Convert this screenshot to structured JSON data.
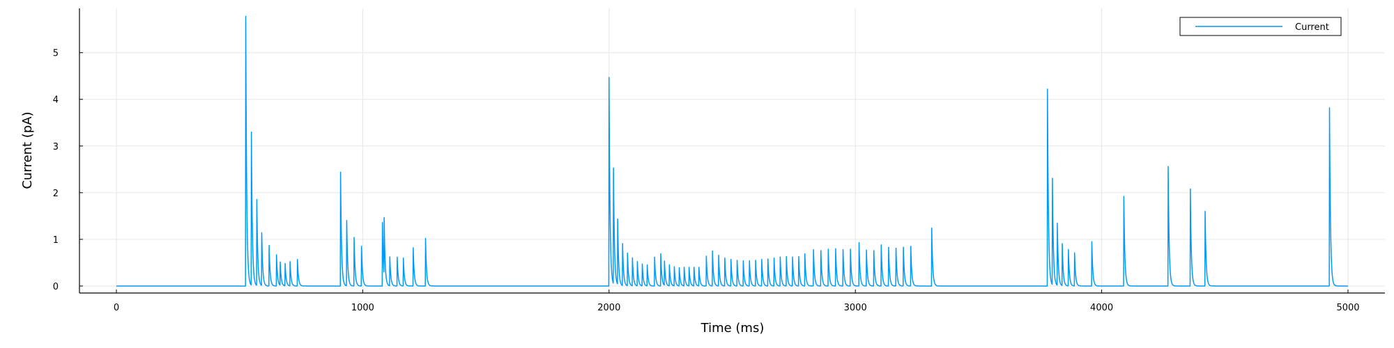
{
  "chart_data": {
    "type": "line",
    "title": "",
    "xlabel": "Time (ms)",
    "ylabel": "Current (pA)",
    "xlim": [
      -150,
      5150
    ],
    "ylim": [
      -0.15,
      5.95
    ],
    "xticks": [
      0,
      1000,
      2000,
      3000,
      4000,
      5000
    ],
    "yticks": [
      0,
      1,
      2,
      3,
      4,
      5
    ],
    "grid": true,
    "legend_position": "top-right",
    "series": [
      {
        "name": "Current",
        "color": "#009AFA",
        "range": [
          0,
          5000
        ],
        "baseline": 0,
        "spikes": [
          [
            525,
            5.78
          ],
          [
            548,
            3.28
          ],
          [
            570,
            1.84
          ],
          [
            590,
            1.13
          ],
          [
            620,
            0.87
          ],
          [
            650,
            0.67
          ],
          [
            665,
            0.5
          ],
          [
            685,
            0.48
          ],
          [
            705,
            0.52
          ],
          [
            735,
            0.57
          ],
          [
            910,
            2.44
          ],
          [
            935,
            1.4
          ],
          [
            965,
            1.04
          ],
          [
            995,
            0.85
          ],
          [
            1080,
            1.36
          ],
          [
            1087,
            1.23
          ],
          [
            1110,
            0.62
          ],
          [
            1140,
            0.62
          ],
          [
            1165,
            0.6
          ],
          [
            1205,
            0.82
          ],
          [
            1255,
            1.02
          ],
          [
            2000,
            4.47
          ],
          [
            2018,
            2.48
          ],
          [
            2035,
            1.4
          ],
          [
            2055,
            0.9
          ],
          [
            2075,
            0.7
          ],
          [
            2095,
            0.6
          ],
          [
            2115,
            0.52
          ],
          [
            2135,
            0.47
          ],
          [
            2155,
            0.45
          ],
          [
            2185,
            0.62
          ],
          [
            2210,
            0.69
          ],
          [
            2225,
            0.52
          ],
          [
            2245,
            0.45
          ],
          [
            2265,
            0.41
          ],
          [
            2285,
            0.39
          ],
          [
            2305,
            0.4
          ],
          [
            2325,
            0.4
          ],
          [
            2345,
            0.4
          ],
          [
            2365,
            0.4
          ],
          [
            2395,
            0.64
          ],
          [
            2420,
            0.75
          ],
          [
            2445,
            0.66
          ],
          [
            2470,
            0.6
          ],
          [
            2495,
            0.57
          ],
          [
            2520,
            0.55
          ],
          [
            2545,
            0.54
          ],
          [
            2570,
            0.54
          ],
          [
            2595,
            0.55
          ],
          [
            2620,
            0.57
          ],
          [
            2645,
            0.58
          ],
          [
            2670,
            0.6
          ],
          [
            2695,
            0.62
          ],
          [
            2720,
            0.63
          ],
          [
            2745,
            0.62
          ],
          [
            2770,
            0.63
          ],
          [
            2795,
            0.69
          ],
          [
            2830,
            0.78
          ],
          [
            2860,
            0.76
          ],
          [
            2890,
            0.79
          ],
          [
            2920,
            0.8
          ],
          [
            2950,
            0.78
          ],
          [
            2980,
            0.79
          ],
          [
            3015,
            0.93
          ],
          [
            3045,
            0.77
          ],
          [
            3075,
            0.76
          ],
          [
            3105,
            0.88
          ],
          [
            3135,
            0.83
          ],
          [
            3165,
            0.81
          ],
          [
            3195,
            0.83
          ],
          [
            3225,
            0.85
          ],
          [
            3310,
            1.24
          ],
          [
            3780,
            4.22
          ],
          [
            3800,
            2.28
          ],
          [
            3820,
            1.33
          ],
          [
            3840,
            0.9
          ],
          [
            3865,
            0.78
          ],
          [
            3890,
            0.71
          ],
          [
            3960,
            0.95
          ],
          [
            4090,
            1.92
          ],
          [
            4270,
            2.56
          ],
          [
            4360,
            2.08
          ],
          [
            4420,
            1.6
          ],
          [
            4925,
            3.82
          ]
        ]
      }
    ]
  }
}
